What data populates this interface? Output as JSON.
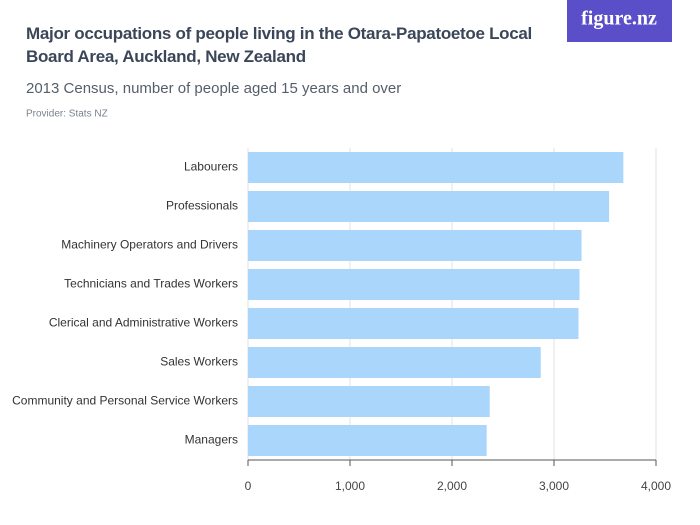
{
  "logo": "figure.nz",
  "chart_data": {
    "type": "bar",
    "orientation": "horizontal",
    "title": "Major occupations of people living in the Otara-Papatoetoe Local Board Area, Auckland, New Zealand",
    "subtitle": "2013 Census, number of people aged 15 years and over",
    "provider": "Provider: Stats NZ",
    "categories": [
      "Labourers",
      "Professionals",
      "Machinery Operators and Drivers",
      "Technicians and Trades Workers",
      "Clerical and Administrative Workers",
      "Sales Workers",
      "Community and Personal Service Workers",
      "Managers"
    ],
    "values": [
      3680,
      3540,
      3270,
      3250,
      3240,
      2870,
      2370,
      2340
    ],
    "color": "#aad6fb",
    "xlim": [
      0,
      4000
    ],
    "xticks": [
      0,
      {
        "value": 1000,
        "label": "1,000"
      },
      {
        "value": 2000,
        "label": "2,000"
      },
      {
        "value": 3000,
        "label": "3,000"
      },
      {
        "value": 4000,
        "label": "4,000"
      }
    ],
    "grid": true
  }
}
